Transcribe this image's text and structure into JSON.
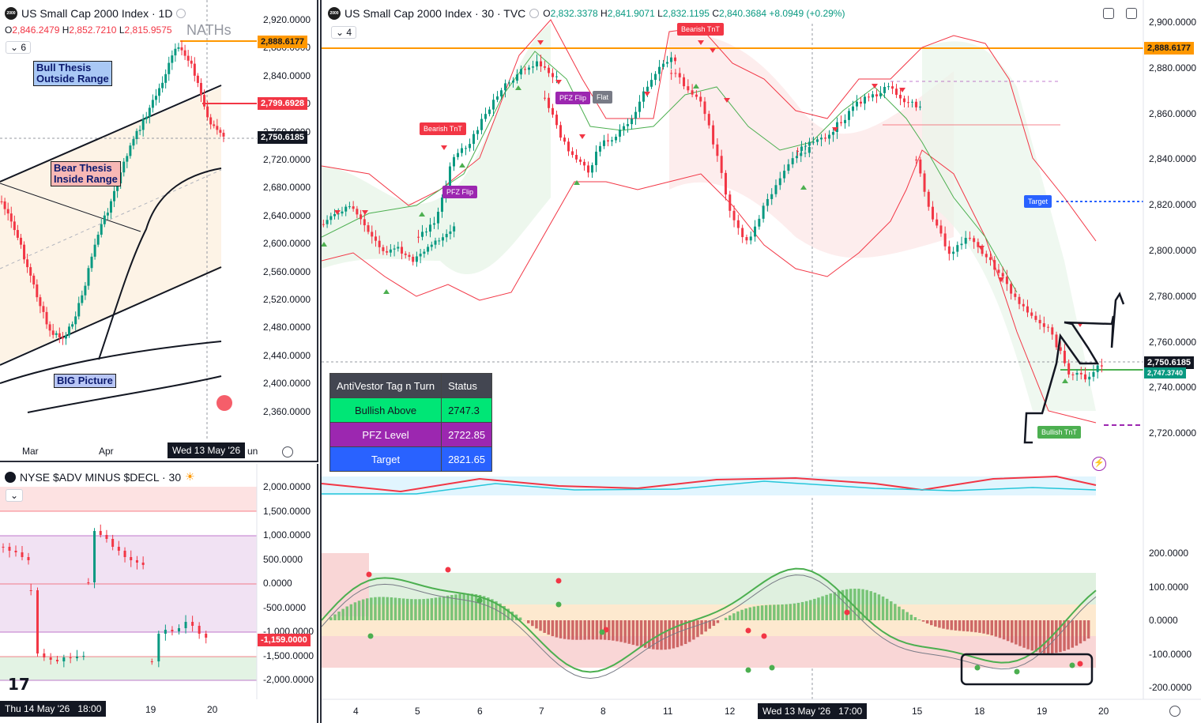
{
  "left_top": {
    "title": "US Small Cap 2000 Index · 1D",
    "ohlc": {
      "o": "2,846.2479",
      "h": "2,852.7210",
      "l": "2,815.9575"
    },
    "o_label": "O",
    "h_label": "H",
    "l_label": "L",
    "count_badge": "6",
    "watermark": "NATHs",
    "notes": {
      "bull": "Bull Thesis\nOutside Range",
      "bear": "Bear Thesis\nInside Range",
      "big": "BIG Picture"
    },
    "price_labels": {
      "orange": "2,888.6177",
      "red": "2,799.6928",
      "last": "2,750.6185"
    },
    "y_ticks": [
      "2,920.0000",
      "2,880.0000",
      "2,840.0000",
      "2,800.0000",
      "2,760.0000",
      "2,720.0000",
      "2,680.0000",
      "2,640.0000",
      "2,600.0000",
      "2,560.0000",
      "2,520.0000",
      "2,480.0000",
      "2,440.0000",
      "2,400.0000",
      "2,360.0000"
    ],
    "x_ticks": [
      "Mar",
      "Apr",
      "un"
    ],
    "cross_date": "Wed 13 May '26"
  },
  "left_bot": {
    "title": "NYSE $ADV MINUS $DECL · 30",
    "y_ticks": [
      "2,000.0000",
      "1,500.0000",
      "1,000.0000",
      "500.0000",
      "0.0000",
      "-500.0000",
      "-1,000.0000",
      "-1,500.0000",
      "-2,000.0000"
    ],
    "last_label": "-1,159.0000",
    "x_ticks": [
      "19",
      "20"
    ],
    "cross_date": "Thu 14 May '26",
    "cross_time": "18:00",
    "logo": "17"
  },
  "right": {
    "title": "US Small Cap 2000 Index · 30 · TVC",
    "ohlc": {
      "o": "2,832.3378",
      "h": "2,841.9071",
      "l": "2,832.1195",
      "c": "2,840.3684",
      "chg": "+8.0949 (+0.29%)"
    },
    "o_label": "O",
    "h_label": "H",
    "l_label": "L",
    "c_label": "C",
    "count_badge": "4",
    "y_ticks": [
      "2,900.0000",
      "2,880.0000",
      "2,860.0000",
      "2,840.0000",
      "2,820.0000",
      "2,800.0000",
      "2,780.0000",
      "2,760.0000",
      "2,740.0000",
      "2,720.0000"
    ],
    "price_labels": {
      "orange": "2,888.6177",
      "last": "2,750.6185",
      "green": "2,747.3740"
    },
    "osc_ticks": [
      "200.0000",
      "100.0000",
      "0.0000",
      "-100.0000",
      "-200.0000"
    ],
    "x_ticks": [
      "4",
      "5",
      "6",
      "7",
      "8",
      "11",
      "12",
      "15",
      "18",
      "19",
      "20"
    ],
    "cross_date": "Wed 13 May '26",
    "cross_time": "17:00",
    "tags": {
      "bearish1": "Bearish TnT",
      "bearish2": "Bearish TnT",
      "pfz1": "PFZ Flip",
      "pfz2": "PFZ Flip",
      "flat": "Flat",
      "target": "Target",
      "bullish": "Bullish TnT"
    },
    "table": {
      "headers": [
        "AntiVestor Tag n Turn",
        "Status"
      ],
      "rows": [
        {
          "label": "Bullish Above",
          "value": "2747.3",
          "color": "#00e676"
        },
        {
          "label": "PFZ Level",
          "value": "2722.85",
          "color": "#9c27b0"
        },
        {
          "label": "Target",
          "value": "2821.65",
          "color": "#2962ff"
        }
      ]
    }
  },
  "colors": {
    "up": "#089981",
    "down": "#f23645",
    "orange": "#ff9800",
    "green_line": "#4caf50",
    "red_line": "#f23645"
  },
  "chart_data": [
    {
      "type": "line",
      "title": "US Small Cap 2000 Index · 1D",
      "x": [
        "Mar",
        "Apr",
        "May"
      ],
      "series": [
        {
          "values": [
            2640,
            2480,
            2750
          ]
        }
      ],
      "ylim": [
        2350,
        2930
      ]
    },
    {
      "type": "bar",
      "title": "NYSE $ADV MINUS $DECL · 30",
      "series": [
        {
          "values": [
            1000,
            -1159
          ]
        }
      ],
      "ylim": [
        -2100,
        2100
      ]
    },
    {
      "type": "line",
      "title": "US Small Cap 2000 Index · 30 · TVC",
      "x": [
        "4",
        "5",
        "6",
        "7",
        "8",
        "11",
        "12",
        "15",
        "18",
        "19",
        "20"
      ],
      "series": [
        {
          "values": [
            2798,
            2808,
            2860,
            2872,
            2846,
            2880,
            2812,
            2840,
            2800,
            2745,
            2750
          ]
        }
      ],
      "ylim": [
        2715,
        2905
      ]
    }
  ]
}
